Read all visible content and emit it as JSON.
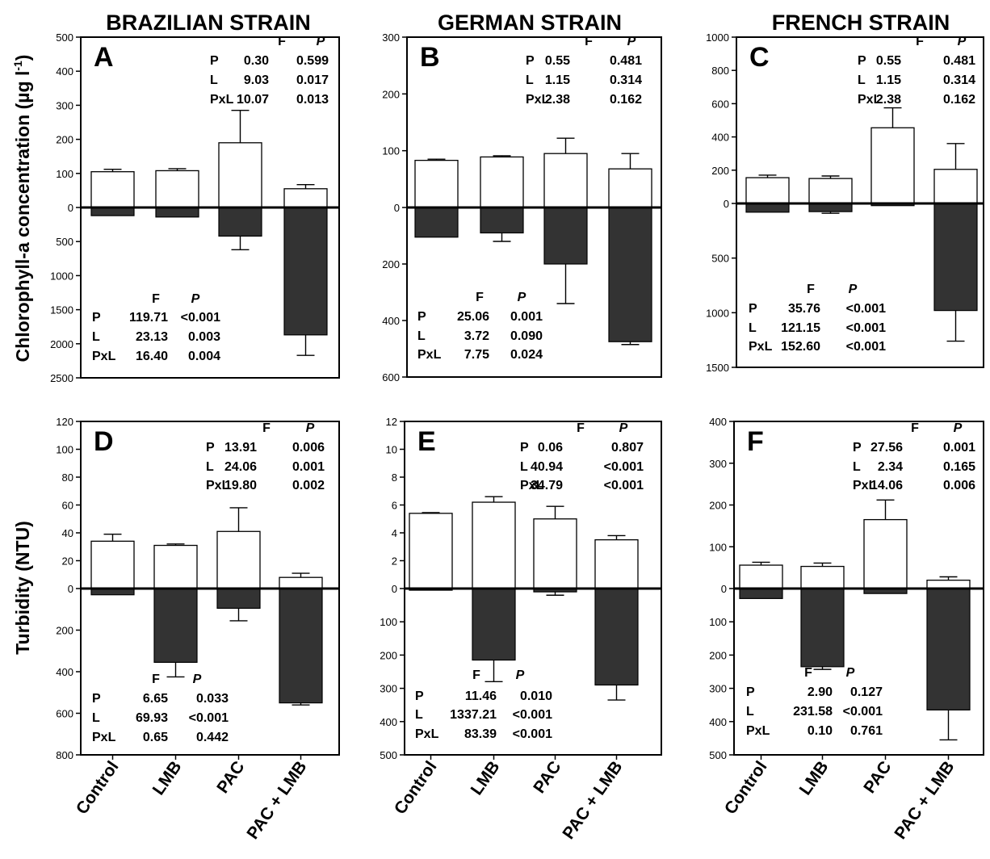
{
  "figure": {
    "column_titles": [
      "BRAZILIAN STRAIN",
      "GERMAN STRAIN",
      "FRENCH STRAIN"
    ],
    "ylabels": {
      "row1_prefix": "Chlorophyll-a concentration (µg l",
      "row1_sup": "-1",
      "row1_suffix": ")",
      "row2": "Turbidity (NTU)"
    },
    "stats_headers": {
      "f": "F",
      "p": "P"
    }
  },
  "chart_data": [
    {
      "type": "bar",
      "panel": "A",
      "categories": [
        "Control",
        "LMB",
        "PAC",
        "PAC + LMB"
      ],
      "top": {
        "values": [
          105,
          108,
          190,
          55
        ],
        "errors": [
          7,
          6,
          95,
          12
        ],
        "ylim": [
          0,
          500
        ],
        "ticks": [
          "500",
          "400",
          "300",
          "200",
          "100",
          "0"
        ],
        "tick_values": [
          500,
          400,
          300,
          200,
          100,
          0
        ]
      },
      "bottom": {
        "values": [
          120,
          140,
          420,
          1870
        ],
        "errors": [
          0,
          0,
          200,
          300
        ],
        "ylim": [
          0,
          2500
        ],
        "ticks": [
          "500",
          "1000",
          "1500",
          "2000",
          "2500"
        ],
        "tick_values": [
          500,
          1000,
          1500,
          2000,
          2500
        ]
      },
      "stats_top": [
        [
          "P",
          "0.30",
          "0.599"
        ],
        [
          "L",
          "9.03",
          "0.017"
        ],
        [
          "PxL",
          "10.07",
          "0.013"
        ]
      ],
      "stats_bottom": [
        [
          "P",
          "119.71",
          "<0.001"
        ],
        [
          "L",
          "23.13",
          "0.003"
        ],
        [
          "PxL",
          "16.40",
          "0.004"
        ]
      ]
    },
    {
      "type": "bar",
      "panel": "B",
      "categories": [
        "Control",
        "LMB",
        "PAC",
        "PAC + LMB"
      ],
      "top": {
        "values": [
          83,
          89,
          95,
          68
        ],
        "errors": [
          2,
          2,
          27,
          27
        ],
        "ylim": [
          0,
          300
        ],
        "ticks": [
          "300",
          "200",
          "100",
          "0"
        ],
        "tick_values": [
          300,
          200,
          100,
          0
        ]
      },
      "bottom": {
        "values": [
          105,
          90,
          200,
          475
        ],
        "errors": [
          0,
          30,
          140,
          10
        ],
        "ylim": [
          0,
          600
        ],
        "ticks": [
          "200",
          "400",
          "600"
        ],
        "tick_values": [
          200,
          400,
          600
        ]
      },
      "stats_top": [
        [
          "P",
          "0.55",
          "0.481"
        ],
        [
          "L",
          "1.15",
          "0.314"
        ],
        [
          "PxL",
          "2.38",
          "0.162"
        ]
      ],
      "stats_bottom": [
        [
          "P",
          "25.06",
          "0.001"
        ],
        [
          "L",
          "3.72",
          "0.090"
        ],
        [
          "PxL",
          "7.75",
          "0.024"
        ]
      ]
    },
    {
      "type": "bar",
      "panel": "C",
      "categories": [
        "Control",
        "LMB",
        "PAC",
        "PAC + LMB"
      ],
      "top": {
        "values": [
          155,
          150,
          455,
          205
        ],
        "errors": [
          15,
          15,
          120,
          155
        ],
        "ylim": [
          0,
          1000
        ],
        "ticks": [
          "1000",
          "800",
          "600",
          "400",
          "200",
          "0"
        ],
        "tick_values": [
          1000,
          800,
          600,
          400,
          200,
          0
        ]
      },
      "bottom": {
        "values": [
          80,
          75,
          20,
          980
        ],
        "errors": [
          0,
          15,
          0,
          280
        ],
        "ylim": [
          0,
          1500
        ],
        "ticks": [
          "500",
          "1000",
          "1500"
        ],
        "tick_values": [
          500,
          1000,
          1500
        ]
      },
      "stats_top": [
        [
          "P",
          "0.55",
          "0.481"
        ],
        [
          "L",
          "1.15",
          "0.314"
        ],
        [
          "PxL",
          "2.38",
          "0.162"
        ]
      ],
      "stats_bottom": [
        [
          "P",
          "35.76",
          "<0.001"
        ],
        [
          "L",
          "121.15",
          "<0.001"
        ],
        [
          "PxL",
          "152.60",
          "<0.001"
        ]
      ]
    },
    {
      "type": "bar",
      "panel": "D",
      "categories": [
        "Control",
        "LMB",
        "PAC",
        "PAC + LMB"
      ],
      "top": {
        "values": [
          34,
          31,
          41,
          8
        ],
        "errors": [
          5,
          1,
          17,
          3
        ],
        "ylim": [
          0,
          120
        ],
        "ticks": [
          "120",
          "100",
          "80",
          "60",
          "40",
          "20",
          "0"
        ],
        "tick_values": [
          120,
          100,
          80,
          60,
          40,
          20,
          0
        ]
      },
      "bottom": {
        "values": [
          30,
          355,
          95,
          550
        ],
        "errors": [
          0,
          70,
          60,
          10
        ],
        "ylim": [
          0,
          800
        ],
        "ticks": [
          "200",
          "400",
          "600",
          "800"
        ],
        "tick_values": [
          200,
          400,
          600,
          800
        ]
      },
      "stats_top": [
        [
          "P",
          "13.91",
          "0.006"
        ],
        [
          "L",
          "24.06",
          "0.001"
        ],
        [
          "PxL",
          "19.80",
          "0.002"
        ]
      ],
      "stats_bottom": [
        [
          "P",
          "6.65",
          "0.033"
        ],
        [
          "L",
          "69.93",
          "<0.001"
        ],
        [
          "PxL",
          "0.65",
          "0.442"
        ]
      ]
    },
    {
      "type": "bar",
      "panel": "E",
      "categories": [
        "Control",
        "LMB",
        "PAC",
        "PAC + LMB"
      ],
      "top": {
        "values": [
          5.4,
          6.2,
          5.0,
          3.5
        ],
        "errors": [
          0.05,
          0.4,
          0.9,
          0.3
        ],
        "ylim": [
          0,
          12
        ],
        "ticks": [
          "12",
          "10",
          "8",
          "6",
          "4",
          "2",
          "0"
        ],
        "tick_values": [
          12,
          10,
          8,
          6,
          4,
          2,
          0
        ]
      },
      "bottom": {
        "values": [
          5,
          215,
          10,
          290
        ],
        "errors": [
          0,
          65,
          10,
          45
        ],
        "ylim": [
          0,
          500
        ],
        "ticks": [
          "100",
          "200",
          "300",
          "400",
          "500"
        ],
        "tick_values": [
          100,
          200,
          300,
          400,
          500
        ]
      },
      "stats_top": [
        [
          "P",
          "0.06",
          "0.807"
        ],
        [
          "L",
          "40.94",
          "<0.001"
        ],
        [
          "PxL",
          "34.79",
          "<0.001"
        ]
      ],
      "stats_bottom": [
        [
          "P",
          "11.46",
          "0.010"
        ],
        [
          "L",
          "1337.21",
          "<0.001"
        ],
        [
          "PxL",
          "83.39",
          "<0.001"
        ]
      ]
    },
    {
      "type": "bar",
      "panel": "F",
      "categories": [
        "Control",
        "LMB",
        "PAC",
        "PAC + LMB"
      ],
      "top": {
        "values": [
          56,
          53,
          165,
          20
        ],
        "errors": [
          7,
          8,
          47,
          8
        ],
        "ylim": [
          0,
          400
        ],
        "ticks": [
          "400",
          "300",
          "200",
          "100",
          "0"
        ],
        "tick_values": [
          400,
          300,
          200,
          100,
          0
        ]
      },
      "bottom": {
        "values": [
          30,
          235,
          15,
          365
        ],
        "errors": [
          0,
          8,
          0,
          90
        ],
        "ylim": [
          0,
          500
        ],
        "ticks": [
          "100",
          "200",
          "300",
          "400",
          "500"
        ],
        "tick_values": [
          100,
          200,
          300,
          400,
          500
        ]
      },
      "stats_top": [
        [
          "P",
          "27.56",
          "0.001"
        ],
        [
          "L",
          "2.34",
          "0.165"
        ],
        [
          "PxL",
          "14.06",
          "0.006"
        ]
      ],
      "stats_bottom": [
        [
          "P",
          "2.90",
          "0.127"
        ],
        [
          "L",
          "231.58",
          "<0.001"
        ],
        [
          "PxL",
          "0.10",
          "0.761"
        ]
      ]
    }
  ]
}
